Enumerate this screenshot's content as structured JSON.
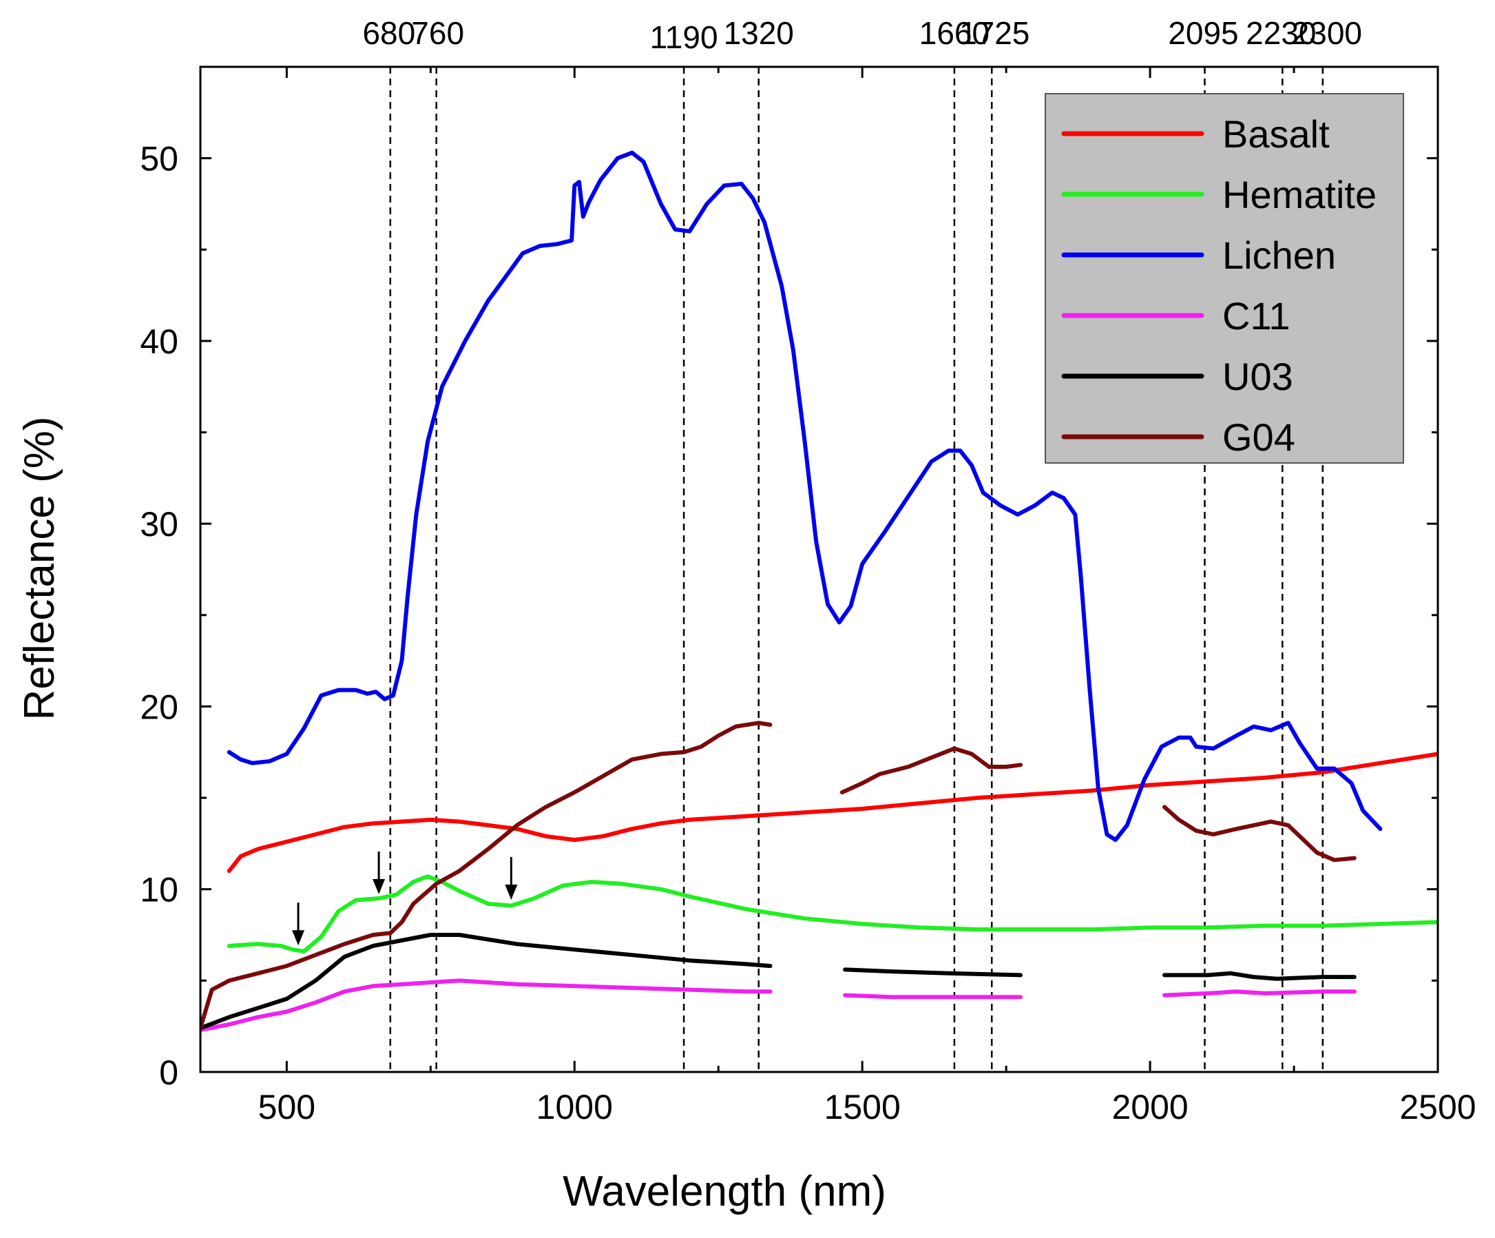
{
  "chart_data": {
    "type": "line",
    "title": "",
    "xlabel": "Wavelength (nm)",
    "ylabel": "Reflectance (%)",
    "xlim": [
      350,
      2500
    ],
    "ylim": [
      0,
      55
    ],
    "x_ticks": [
      500,
      1000,
      1500,
      2000,
      2500
    ],
    "x_tick_labels": [
      "500",
      "1000",
      "1500",
      "2000",
      "2500"
    ],
    "y_ticks": [
      0,
      10,
      20,
      30,
      40,
      50
    ],
    "y_tick_labels": [
      "0",
      "10",
      "20",
      "30",
      "40",
      "50"
    ],
    "grid": false,
    "legend_position": "top-right",
    "reference_lines": [
      {
        "x": 680,
        "label": "680"
      },
      {
        "x": 760,
        "label": "760"
      },
      {
        "x": 1190,
        "label": "1190"
      },
      {
        "x": 1320,
        "label": "1320"
      },
      {
        "x": 1660,
        "label": "1660"
      },
      {
        "x": 1725,
        "label": "1725"
      },
      {
        "x": 2095,
        "label": "2095"
      },
      {
        "x": 2230,
        "label": "2230"
      },
      {
        "x": 2300,
        "label": "2300"
      }
    ],
    "arrows": [
      {
        "x": 520,
        "y": 6.7
      },
      {
        "x": 660,
        "y": 9.5
      },
      {
        "x": 890,
        "y": 9.2
      }
    ],
    "series": [
      {
        "name": "Basalt",
        "color": "#ff0000",
        "segments": [
          [
            [
              400,
              11.0
            ],
            [
              420,
              11.8
            ],
            [
              450,
              12.2
            ],
            [
              500,
              12.6
            ],
            [
              550,
              13.0
            ],
            [
              600,
              13.4
            ],
            [
              650,
              13.6
            ],
            [
              700,
              13.7
            ],
            [
              750,
              13.8
            ],
            [
              800,
              13.7
            ],
            [
              850,
              13.5
            ],
            [
              900,
              13.3
            ],
            [
              950,
              12.9
            ],
            [
              1000,
              12.7
            ],
            [
              1050,
              12.9
            ],
            [
              1100,
              13.3
            ],
            [
              1150,
              13.6
            ],
            [
              1200,
              13.8
            ],
            [
              1300,
              14.0
            ],
            [
              1400,
              14.2
            ],
            [
              1500,
              14.4
            ],
            [
              1600,
              14.7
            ],
            [
              1700,
              15.0
            ],
            [
              1800,
              15.2
            ],
            [
              1900,
              15.4
            ],
            [
              2000,
              15.7
            ],
            [
              2100,
              15.9
            ],
            [
              2200,
              16.1
            ],
            [
              2300,
              16.4
            ],
            [
              2400,
              16.9
            ],
            [
              2500,
              17.4
            ]
          ]
        ]
      },
      {
        "name": "Hematite",
        "color": "#22ee22",
        "segments": [
          [
            [
              400,
              6.9
            ],
            [
              450,
              7.0
            ],
            [
              490,
              6.9
            ],
            [
              510,
              6.7
            ],
            [
              530,
              6.6
            ],
            [
              560,
              7.4
            ],
            [
              590,
              8.8
            ],
            [
              620,
              9.4
            ],
            [
              660,
              9.5
            ],
            [
              690,
              9.7
            ],
            [
              720,
              10.4
            ],
            [
              745,
              10.7
            ],
            [
              770,
              10.4
            ],
            [
              800,
              9.9
            ],
            [
              850,
              9.2
            ],
            [
              890,
              9.1
            ],
            [
              930,
              9.5
            ],
            [
              980,
              10.2
            ],
            [
              1030,
              10.4
            ],
            [
              1080,
              10.3
            ],
            [
              1150,
              10.0
            ],
            [
              1200,
              9.6
            ],
            [
              1300,
              8.9
            ],
            [
              1400,
              8.4
            ],
            [
              1500,
              8.1
            ],
            [
              1600,
              7.9
            ],
            [
              1700,
              7.8
            ],
            [
              1800,
              7.8
            ],
            [
              1900,
              7.8
            ],
            [
              2000,
              7.9
            ],
            [
              2100,
              7.9
            ],
            [
              2200,
              8.0
            ],
            [
              2300,
              8.0
            ],
            [
              2400,
              8.1
            ],
            [
              2500,
              8.2
            ]
          ]
        ]
      },
      {
        "name": "Lichen",
        "color": "#0000ee",
        "segments": [
          [
            [
              400,
              17.5
            ],
            [
              420,
              17.1
            ],
            [
              440,
              16.9
            ],
            [
              470,
              17.0
            ],
            [
              500,
              17.4
            ],
            [
              530,
              18.8
            ],
            [
              560,
              20.6
            ],
            [
              590,
              20.9
            ],
            [
              620,
              20.9
            ],
            [
              640,
              20.7
            ],
            [
              655,
              20.8
            ],
            [
              670,
              20.4
            ],
            [
              685,
              20.6
            ],
            [
              700,
              22.5
            ],
            [
              710,
              26.0
            ],
            [
              725,
              30.5
            ],
            [
              745,
              34.5
            ],
            [
              770,
              37.5
            ],
            [
              810,
              40.0
            ],
            [
              850,
              42.2
            ],
            [
              880,
              43.5
            ],
            [
              910,
              44.8
            ],
            [
              940,
              45.2
            ],
            [
              970,
              45.3
            ],
            [
              995,
              45.5
            ],
            [
              1000,
              48.5
            ],
            [
              1008,
              48.7
            ],
            [
              1015,
              46.8
            ],
            [
              1025,
              47.6
            ],
            [
              1045,
              48.8
            ],
            [
              1075,
              50.0
            ],
            [
              1100,
              50.3
            ],
            [
              1120,
              49.8
            ],
            [
              1150,
              47.5
            ],
            [
              1175,
              46.1
            ],
            [
              1200,
              46.0
            ],
            [
              1230,
              47.5
            ],
            [
              1260,
              48.5
            ],
            [
              1290,
              48.6
            ],
            [
              1310,
              47.8
            ],
            [
              1330,
              46.5
            ],
            [
              1360,
              43.0
            ],
            [
              1380,
              39.5
            ],
            [
              1400,
              34.5
            ],
            [
              1420,
              29.0
            ],
            [
              1440,
              25.6
            ],
            [
              1460,
              24.6
            ],
            [
              1480,
              25.5
            ],
            [
              1500,
              27.8
            ],
            [
              1540,
              29.6
            ],
            [
              1580,
              31.5
            ],
            [
              1620,
              33.4
            ],
            [
              1650,
              34.0
            ],
            [
              1670,
              34.0
            ],
            [
              1690,
              33.2
            ],
            [
              1710,
              31.7
            ],
            [
              1740,
              31.0
            ],
            [
              1770,
              30.5
            ],
            [
              1800,
              31.0
            ],
            [
              1830,
              31.7
            ],
            [
              1850,
              31.4
            ],
            [
              1870,
              30.5
            ],
            [
              1880,
              27.0
            ],
            [
              1895,
              21.0
            ],
            [
              1910,
              15.5
            ],
            [
              1925,
              13.0
            ],
            [
              1940,
              12.7
            ],
            [
              1960,
              13.5
            ],
            [
              1990,
              16.0
            ],
            [
              2020,
              17.8
            ],
            [
              2050,
              18.3
            ],
            [
              2070,
              18.3
            ],
            [
              2080,
              17.8
            ],
            [
              2110,
              17.7
            ],
            [
              2150,
              18.4
            ],
            [
              2180,
              18.9
            ],
            [
              2210,
              18.7
            ],
            [
              2240,
              19.1
            ],
            [
              2260,
              18.0
            ],
            [
              2290,
              16.6
            ],
            [
              2320,
              16.6
            ],
            [
              2350,
              15.8
            ],
            [
              2370,
              14.3
            ],
            [
              2400,
              13.3
            ]
          ]
        ]
      },
      {
        "name": "C11",
        "color": "#ee22ee",
        "segments": [
          [
            [
              350,
              2.3
            ],
            [
              400,
              2.6
            ],
            [
              450,
              3.0
            ],
            [
              500,
              3.3
            ],
            [
              550,
              3.8
            ],
            [
              600,
              4.4
            ],
            [
              650,
              4.7
            ],
            [
              700,
              4.8
            ],
            [
              750,
              4.9
            ],
            [
              800,
              5.0
            ],
            [
              900,
              4.8
            ],
            [
              1000,
              4.7
            ],
            [
              1100,
              4.6
            ],
            [
              1200,
              4.5
            ],
            [
              1300,
              4.4
            ],
            [
              1340,
              4.4
            ]
          ],
          [
            [
              1470,
              4.2
            ],
            [
              1550,
              4.1
            ],
            [
              1650,
              4.1
            ],
            [
              1775,
              4.1
            ]
          ],
          [
            [
              2025,
              4.2
            ],
            [
              2100,
              4.3
            ],
            [
              2150,
              4.4
            ],
            [
              2200,
              4.3
            ],
            [
              2300,
              4.4
            ],
            [
              2355,
              4.4
            ]
          ]
        ]
      },
      {
        "name": "U03",
        "color": "#000000",
        "segments": [
          [
            [
              350,
              2.4
            ],
            [
              400,
              3.0
            ],
            [
              450,
              3.5
            ],
            [
              500,
              4.0
            ],
            [
              550,
              5.0
            ],
            [
              600,
              6.3
            ],
            [
              650,
              6.9
            ],
            [
              700,
              7.2
            ],
            [
              750,
              7.5
            ],
            [
              800,
              7.5
            ],
            [
              900,
              7.0
            ],
            [
              1000,
              6.7
            ],
            [
              1100,
              6.4
            ],
            [
              1200,
              6.1
            ],
            [
              1300,
              5.9
            ],
            [
              1340,
              5.8
            ]
          ],
          [
            [
              1470,
              5.6
            ],
            [
              1550,
              5.5
            ],
            [
              1650,
              5.4
            ],
            [
              1775,
              5.3
            ]
          ],
          [
            [
              2025,
              5.3
            ],
            [
              2100,
              5.3
            ],
            [
              2140,
              5.4
            ],
            [
              2180,
              5.2
            ],
            [
              2220,
              5.1
            ],
            [
              2300,
              5.2
            ],
            [
              2355,
              5.2
            ]
          ]
        ]
      },
      {
        "name": "G04",
        "color": "#7a0a0a",
        "segments": [
          [
            [
              350,
              2.4
            ],
            [
              370,
              4.5
            ],
            [
              400,
              5.0
            ],
            [
              450,
              5.4
            ],
            [
              500,
              5.8
            ],
            [
              550,
              6.4
            ],
            [
              600,
              7.0
            ],
            [
              650,
              7.5
            ],
            [
              680,
              7.6
            ],
            [
              700,
              8.2
            ],
            [
              720,
              9.2
            ],
            [
              760,
              10.3
            ],
            [
              800,
              11.0
            ],
            [
              850,
              12.2
            ],
            [
              900,
              13.5
            ],
            [
              950,
              14.5
            ],
            [
              1000,
              15.3
            ],
            [
              1050,
              16.2
            ],
            [
              1100,
              17.1
            ],
            [
              1150,
              17.4
            ],
            [
              1190,
              17.5
            ],
            [
              1220,
              17.8
            ],
            [
              1250,
              18.4
            ],
            [
              1280,
              18.9
            ],
            [
              1320,
              19.1
            ],
            [
              1340,
              19.0
            ]
          ],
          [
            [
              1465,
              15.3
            ],
            [
              1500,
              15.8
            ],
            [
              1530,
              16.3
            ],
            [
              1580,
              16.7
            ],
            [
              1620,
              17.2
            ],
            [
              1660,
              17.7
            ],
            [
              1690,
              17.4
            ],
            [
              1720,
              16.7
            ],
            [
              1750,
              16.7
            ],
            [
              1775,
              16.8
            ]
          ],
          [
            [
              2025,
              14.5
            ],
            [
              2050,
              13.8
            ],
            [
              2080,
              13.2
            ],
            [
              2110,
              13.0
            ],
            [
              2150,
              13.3
            ],
            [
              2180,
              13.5
            ],
            [
              2210,
              13.7
            ],
            [
              2240,
              13.5
            ],
            [
              2260,
              12.9
            ],
            [
              2290,
              12.0
            ],
            [
              2320,
              11.6
            ],
            [
              2355,
              11.7
            ]
          ]
        ]
      }
    ]
  }
}
